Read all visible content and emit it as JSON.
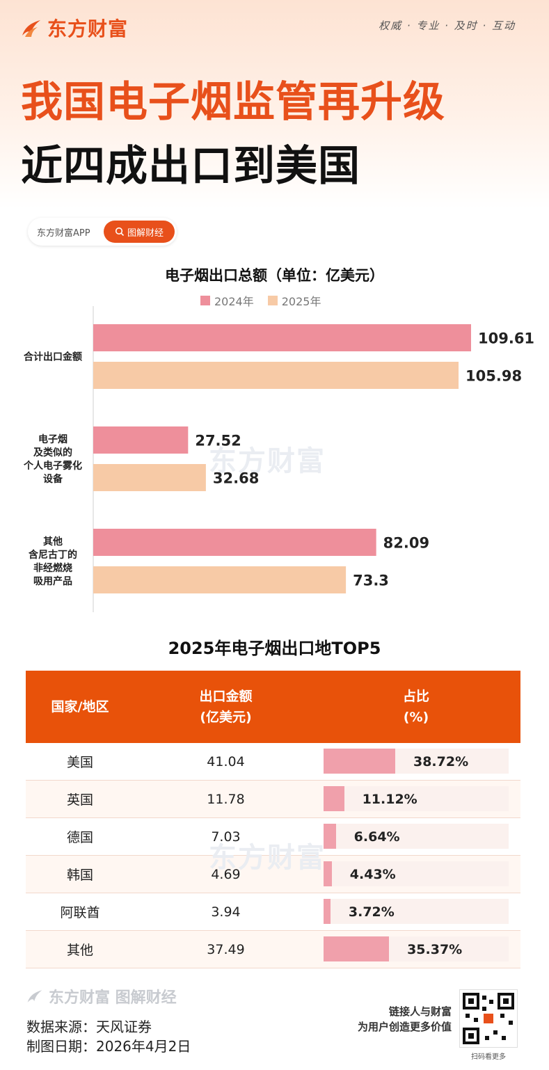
{
  "header": {
    "logo_text": "东方财富",
    "slogan": "权威 · 专业 · 及时 · 互动",
    "title_line1": "我国电子烟监管再升级",
    "title_line2": "近四成出口到美国"
  },
  "app_badge": {
    "app_name": "东方财富APP",
    "tag_label": "图解财经"
  },
  "watermark_text": "东方财富",
  "chart_data": {
    "type": "bar",
    "orientation": "horizontal",
    "title": "电子烟出口总额（单位：亿美元）",
    "categories": [
      [
        "合计出口金额"
      ],
      [
        "电子烟",
        "及类似的",
        "个人电子雾化",
        "设备"
      ],
      [
        "其他",
        "含尼古丁的",
        "非经燃烧",
        "吸用产品"
      ]
    ],
    "series": [
      {
        "name": "2024年",
        "values": [
          109.61,
          27.52,
          82.09
        ],
        "labels": [
          "109.61",
          "27.52",
          "82.09"
        ],
        "color": "#ee8f9b"
      },
      {
        "name": "2025年",
        "values": [
          105.98,
          32.68,
          73.3
        ],
        "labels": [
          "105.98",
          "32.68",
          "73.3"
        ],
        "color": "#f7caa6"
      }
    ],
    "xlim": [
      0,
      109.61
    ],
    "grid": false,
    "legend_position": "top"
  },
  "table": {
    "title": "2025年电子烟出口地TOP5",
    "headers": {
      "country": "国家/地区",
      "amount_line1": "出口金额",
      "amount_line2": "(亿美元)",
      "share_line1": "占比",
      "share_line2": "(%)"
    },
    "rows": [
      {
        "country": "美国",
        "amount": "41.04",
        "share": "38.72%",
        "share_value": 38.72
      },
      {
        "country": "英国",
        "amount": "11.78",
        "share": "11.12%",
        "share_value": 11.12
      },
      {
        "country": "德国",
        "amount": "7.03",
        "share": "6.64%",
        "share_value": 6.64
      },
      {
        "country": "韩国",
        "amount": "4.69",
        "share": "4.43%",
        "share_value": 4.43
      },
      {
        "country": "阿联酋",
        "amount": "3.94",
        "share": "3.72%",
        "share_value": 3.72
      },
      {
        "country": "其他",
        "amount": "37.49",
        "share": "35.37%",
        "share_value": 35.37
      }
    ]
  },
  "footer": {
    "brand": "东方财富 图解财经",
    "source": "数据来源：天风证券",
    "date": "制图日期：2026年4月2日",
    "promo_line1": "链接人与财富",
    "promo_line2": "为用户创造更多价值",
    "qr_caption": "扫码看更多"
  },
  "colors": {
    "brand_orange": "#e8501b",
    "table_header": "#e8520a",
    "bar_2024": "#ee8f9b",
    "bar_2025": "#f7caa6",
    "share_bar": "#f0a0ab"
  }
}
